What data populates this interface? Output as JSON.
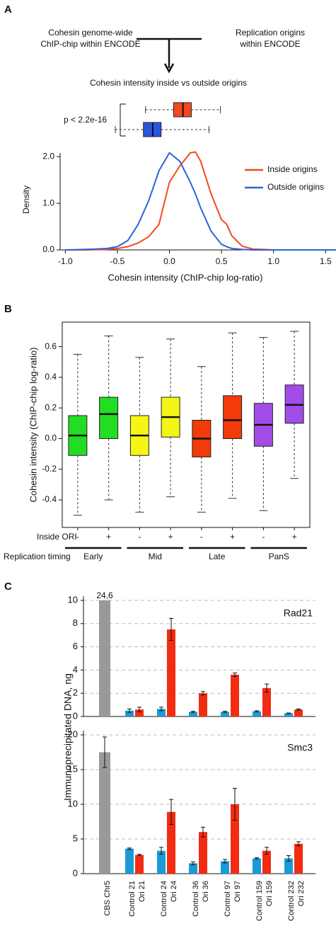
{
  "panel_labels": [
    "A",
    "B",
    "C"
  ],
  "diagram": {
    "left": [
      "Cohesin genome-wide",
      "ChIP-chip within ENCODE"
    ],
    "right": [
      "Replication origins",
      "within ENCODE"
    ],
    "result": "Cohesin intensity inside vs outside origins"
  },
  "chart_data": [
    {
      "type": "hboxplot",
      "annotation": "p < 2.2e-16",
      "xlim": [
        -1.05,
        1.6
      ],
      "boxes": [
        {
          "color": "#f24a1d",
          "values": [
            -0.23,
            0.04,
            0.13,
            0.21,
            0.49
          ]
        },
        {
          "color": "#2b55e0",
          "values": [
            -0.52,
            -0.25,
            -0.16,
            -0.08,
            0.38
          ]
        }
      ]
    },
    {
      "type": "line",
      "xlabel": "Cohesin intensity (ChIP-chip log-ratio)",
      "ylabel": "Density",
      "legend": "upper right",
      "x": [
        -1.0,
        -0.8,
        -0.6,
        -0.5,
        -0.4,
        -0.3,
        -0.2,
        -0.1,
        0.0,
        0.1,
        0.2,
        0.25,
        0.3,
        0.4,
        0.5,
        0.55,
        0.6,
        0.7,
        0.8,
        1.0,
        1.6
      ],
      "series": [
        {
          "name": "Inside origins",
          "color": "#f24a1d",
          "values": [
            0,
            0,
            0.01,
            0.03,
            0.07,
            0.15,
            0.28,
            0.55,
            1.45,
            1.8,
            2.08,
            2.1,
            1.9,
            1.2,
            0.65,
            0.55,
            0.3,
            0.08,
            0.02,
            0,
            0
          ]
        },
        {
          "name": "Outside origins",
          "color": "#2b62dc",
          "values": [
            0,
            0.01,
            0.03,
            0.07,
            0.2,
            0.55,
            1.05,
            1.7,
            2.08,
            1.9,
            1.45,
            1.2,
            0.9,
            0.4,
            0.12,
            0.07,
            0.03,
            0.01,
            0,
            0,
            0
          ]
        }
      ],
      "xlim": [
        -1.05,
        1.6
      ],
      "xticks": [
        {
          "value": -1.0,
          "label": "-1.0"
        },
        -0.5,
        {
          "value": 0.0,
          "label": "0.0"
        },
        0.5,
        {
          "value": 1.0,
          "label": "1.0"
        },
        1.5
      ],
      "ylim": [
        0,
        2.2
      ],
      "yticks": [
        {
          "value": 0.0,
          "label": "0.0"
        },
        {
          "value": 1.0,
          "label": "1.0"
        },
        {
          "value": 2.0,
          "label": "2.0"
        }
      ]
    },
    {
      "type": "boxplot",
      "ylabel": "Cohesin intensity (ChIP-chip log-ratio)",
      "categories_label": "Inside ORI",
      "categories": [
        "-",
        "+",
        "-",
        "+",
        "-",
        "+",
        "-",
        "+"
      ],
      "groups_label": "Replication timing",
      "groups": [
        "Early",
        "Mid",
        "Late",
        "PanS"
      ],
      "colors": [
        "#22dd22",
        "#22dd22",
        "#f5f516",
        "#f5f516",
        "#f23a0a",
        "#f23a0a",
        "#a24de8",
        "#a24de8"
      ],
      "boxes": [
        [
          -0.5,
          -0.11,
          0.02,
          0.15,
          0.55
        ],
        [
          -0.4,
          0.0,
          0.16,
          0.27,
          0.67
        ],
        [
          -0.48,
          -0.11,
          0.02,
          0.15,
          0.53
        ],
        [
          -0.38,
          0.01,
          0.14,
          0.27,
          0.65
        ],
        [
          -0.48,
          -0.12,
          0.0,
          0.12,
          0.47
        ],
        [
          -0.39,
          0.0,
          0.12,
          0.28,
          0.69
        ],
        [
          -0.47,
          -0.05,
          0.09,
          0.23,
          0.66
        ],
        [
          -0.26,
          0.1,
          0.22,
          0.35,
          0.7
        ]
      ],
      "ylim": [
        -0.58,
        0.76
      ],
      "yticks": [
        -0.4,
        -0.2,
        {
          "value": 0.0,
          "label": "0.0"
        },
        0.2,
        0.4,
        0.6
      ]
    },
    {
      "type": "bar",
      "title": "Rad21",
      "ylabel": "Immunoprecipitated DNA, ng",
      "values": [
        24.6,
        0.5,
        0.6,
        0.65,
        7.5,
        0.4,
        2.0,
        0.4,
        3.6,
        0.45,
        2.45,
        0.28,
        0.6
      ],
      "value_labels": [
        "24,6",
        null,
        null,
        null,
        null,
        null,
        null,
        null,
        null,
        null,
        null,
        null,
        null
      ],
      "errors": [
        null,
        0.15,
        0.2,
        0.15,
        0.95,
        0.05,
        0.15,
        0.05,
        0.15,
        0.05,
        0.35,
        0.02,
        0.05
      ],
      "colors": [
        "#999999",
        "#1a9ad6",
        "#f22c12",
        "#1a9ad6",
        "#f22c12",
        "#1a9ad6",
        "#f22c12",
        "#1a9ad6",
        "#f22c12",
        "#1a9ad6",
        "#f22c12",
        "#1a9ad6",
        "#f22c12"
      ],
      "ylim": [
        0,
        10
      ],
      "yticks": [
        0,
        2,
        4,
        6,
        8,
        10
      ],
      "grid": true
    },
    {
      "type": "bar",
      "title": "Smc3",
      "categories": [
        "CBS Chr5",
        "Control 21",
        "Ori 21",
        "Control 24",
        "Ori 24",
        "Control 36",
        "Ori 36",
        "Control 97",
        "Ori 97",
        "Control 159",
        "Ori 159",
        "Control 232",
        "Ori 232"
      ],
      "values": [
        17.5,
        3.6,
        2.7,
        3.3,
        8.9,
        1.5,
        6.0,
        1.8,
        10.0,
        2.2,
        3.3,
        2.2,
        4.3
      ],
      "errors": [
        2.2,
        0.1,
        0.1,
        0.5,
        1.8,
        0.2,
        0.7,
        0.25,
        2.3,
        0.1,
        0.5,
        0.4,
        0.3
      ],
      "colors": [
        "#999999",
        "#1a9ad6",
        "#f22c12",
        "#1a9ad6",
        "#f22c12",
        "#1a9ad6",
        "#f22c12",
        "#1a9ad6",
        "#f22c12",
        "#1a9ad6",
        "#f22c12",
        "#1a9ad6",
        "#f22c12"
      ],
      "ylim": [
        0,
        20
      ],
      "yticks": [
        0,
        5,
        10,
        15,
        20
      ],
      "grid": true
    }
  ]
}
